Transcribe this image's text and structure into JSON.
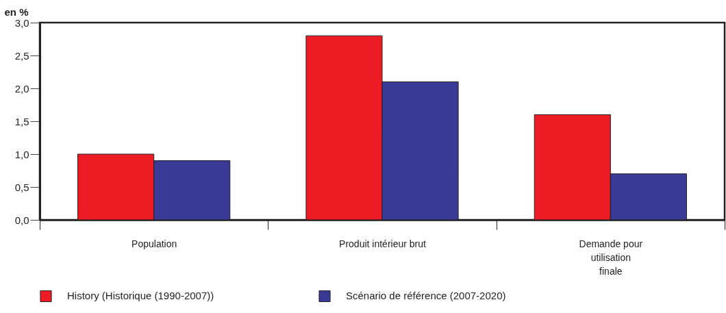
{
  "chart_data": {
    "type": "bar",
    "ylabel": "en %",
    "categories": [
      "Population",
      "Produit intérieur brut",
      "Demande pour utilisation finale"
    ],
    "series": [
      {
        "name": "History (Historique (1990-2007))",
        "color": "#ed1c24",
        "values": [
          1.0,
          2.8,
          1.6
        ]
      },
      {
        "name": "Scénario de référence (2007-2020)",
        "color": "#393996",
        "values": [
          0.9,
          2.1,
          0.7
        ]
      }
    ],
    "ylim": [
      0,
      3
    ],
    "yticks": [
      {
        "value": 0,
        "label": "0,0"
      },
      {
        "value": 0.5,
        "label": "0,5"
      },
      {
        "value": 1,
        "label": "1,0"
      },
      {
        "value": 1.5,
        "label": "1,5"
      },
      {
        "value": 2,
        "label": "2,0"
      },
      {
        "value": 2.5,
        "label": "2,5"
      },
      {
        "value": 3,
        "label": "3,0"
      }
    ],
    "grid": false,
    "legend": "bottom"
  }
}
